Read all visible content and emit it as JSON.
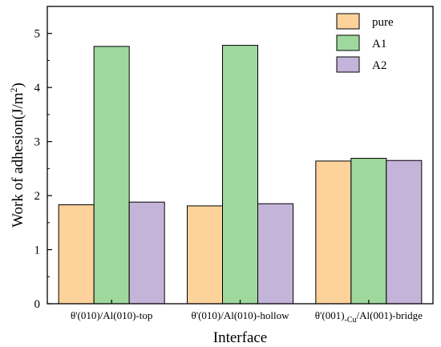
{
  "chart_data": {
    "type": "bar",
    "categories": [
      {
        "pre": "θ'(010)/Al(010)-top",
        "sub": "",
        "post": ""
      },
      {
        "pre": "θ'(010)/Al(010)-hollow",
        "sub": "",
        "post": ""
      },
      {
        "pre": "θ'(001)",
        "sub": "-Cu",
        "post": "/Al(001)-bridge"
      }
    ],
    "series": [
      {
        "name": "pure",
        "color": "#fdd29b",
        "values": [
          1.83,
          1.81,
          2.64
        ]
      },
      {
        "name": "A1",
        "color": "#9fd89d",
        "values": [
          4.76,
          4.78,
          2.69
        ]
      },
      {
        "name": "A2",
        "color": "#c5b4d9",
        "values": [
          1.88,
          1.85,
          2.65
        ]
      }
    ],
    "xlabel": "Interface",
    "ylabel": {
      "pre": "Work of adhesion(J/m",
      "sup": "2",
      "post": ")"
    },
    "ylim": [
      0,
      5.5
    ],
    "yticks": [
      0,
      1,
      2,
      3,
      4,
      5
    ],
    "grid": false,
    "legend_position": "top-right"
  }
}
